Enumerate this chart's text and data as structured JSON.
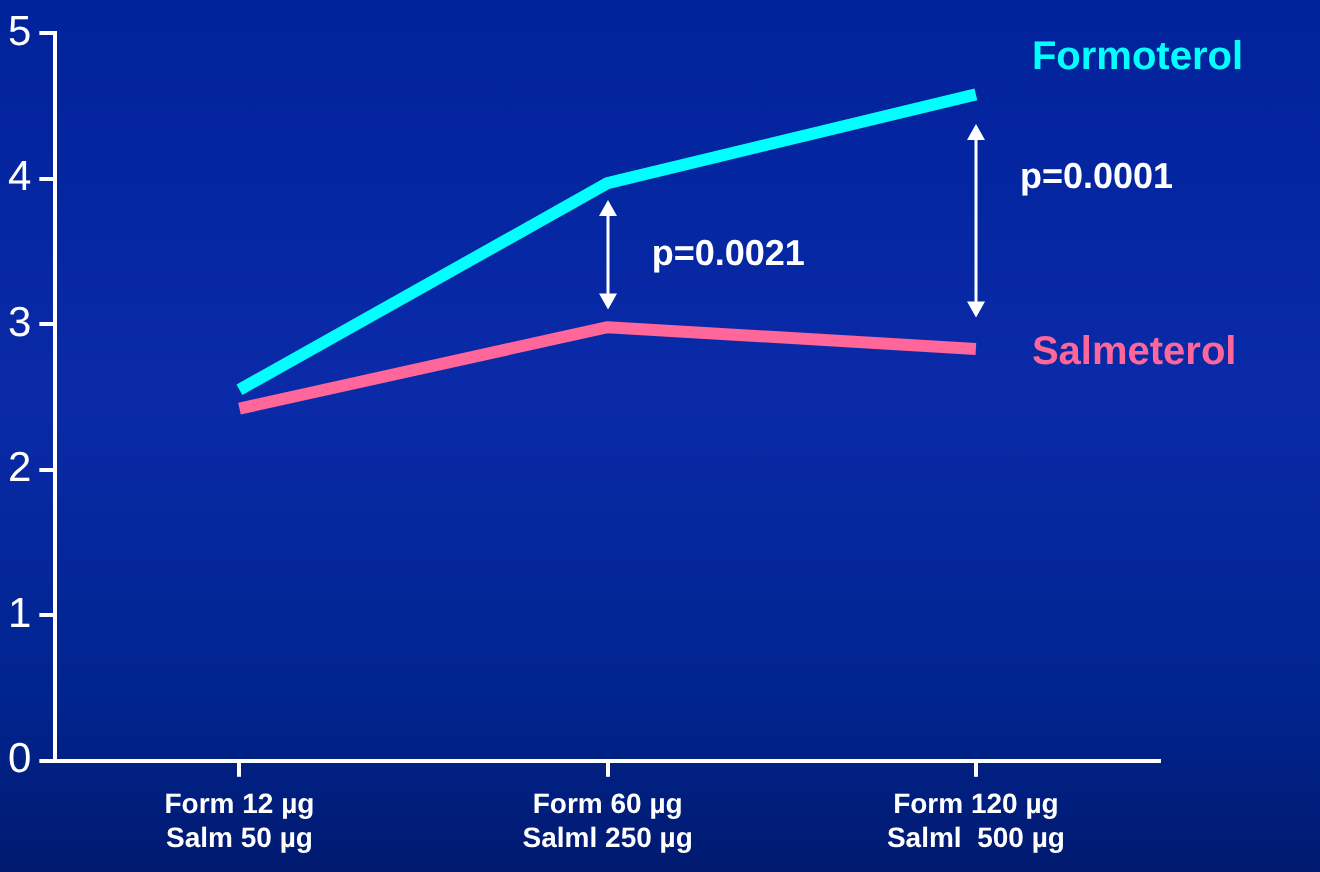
{
  "chart_data": {
    "type": "line",
    "categories": [
      "Form 12 µg\nSalm 50 µg",
      "Form 60 µg\nSalml 250 µg",
      "Form 120 µg\nSalml  500 µg"
    ],
    "series": [
      {
        "name": "Formoterol",
        "color": "#00ffff",
        "values": [
          2.55,
          3.97,
          4.58
        ]
      },
      {
        "name": "Salmeterol",
        "color": "#ff6699",
        "values": [
          2.42,
          2.98,
          2.83
        ]
      }
    ],
    "ylim": [
      0,
      5
    ],
    "yticks": [
      0,
      1,
      2,
      3,
      4,
      5
    ],
    "grid": false,
    "legend": false,
    "marker": "none",
    "line_style": "solid",
    "annotations": [
      "p=0.0021",
      "p=0.0001"
    ]
  }
}
